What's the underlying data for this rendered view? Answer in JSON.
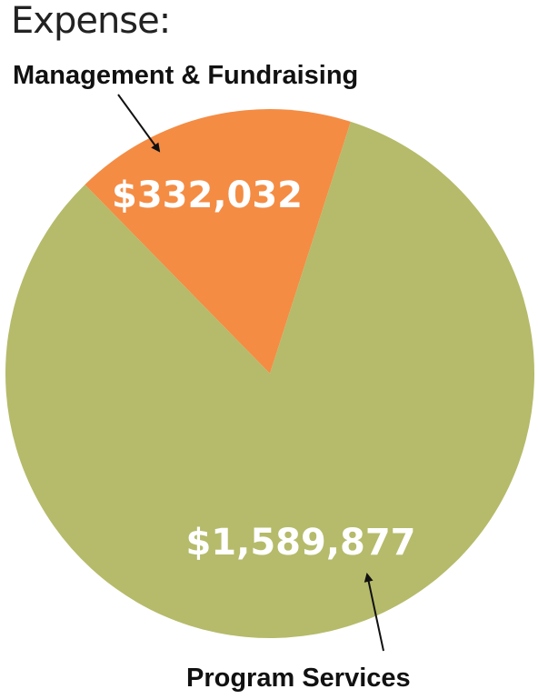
{
  "header": {
    "title": "Expense:"
  },
  "colors": {
    "background": "#ffffff",
    "text": "#111111",
    "value_text": "#ffffff"
  },
  "chart_data": {
    "type": "pie",
    "title": "Expense:",
    "slices": [
      {
        "label": "Management & Fundraising",
        "value": 332032,
        "value_label": "$332,032",
        "color": "#F48C44"
      },
      {
        "label": "Program Services",
        "value": 1589877,
        "value_label": "$1,589,877",
        "color": "#B5BB6A"
      }
    ],
    "legend": "none"
  }
}
